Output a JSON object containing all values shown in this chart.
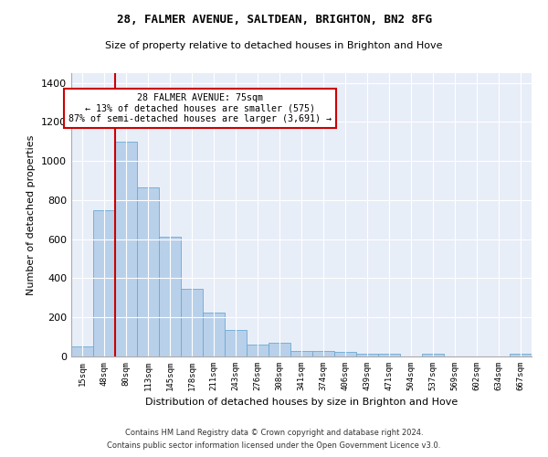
{
  "title1": "28, FALMER AVENUE, SALTDEAN, BRIGHTON, BN2 8FG",
  "title2": "Size of property relative to detached houses in Brighton and Hove",
  "xlabel": "Distribution of detached houses by size in Brighton and Hove",
  "ylabel": "Number of detached properties",
  "categories": [
    "15sqm",
    "48sqm",
    "80sqm",
    "113sqm",
    "145sqm",
    "178sqm",
    "211sqm",
    "243sqm",
    "276sqm",
    "308sqm",
    "341sqm",
    "374sqm",
    "406sqm",
    "439sqm",
    "471sqm",
    "504sqm",
    "537sqm",
    "569sqm",
    "602sqm",
    "634sqm",
    "667sqm"
  ],
  "values": [
    50,
    750,
    1100,
    865,
    615,
    345,
    225,
    135,
    60,
    70,
    30,
    30,
    22,
    15,
    15,
    0,
    12,
    0,
    0,
    0,
    12
  ],
  "bar_color": "#b8d0ea",
  "bar_edgecolor": "#6aaad4",
  "vline_color": "#cc0000",
  "annotation_text": "28 FALMER AVENUE: 75sqm\n← 13% of detached houses are smaller (575)\n87% of semi-detached houses are larger (3,691) →",
  "annotation_box_color": "#ffffff",
  "annotation_box_edgecolor": "#cc0000",
  "ylim": [
    0,
    1450
  ],
  "yticks": [
    0,
    200,
    400,
    600,
    800,
    1000,
    1200,
    1400
  ],
  "bg_color": "#e8eef8",
  "footnote1": "Contains HM Land Registry data © Crown copyright and database right 2024.",
  "footnote2": "Contains public sector information licensed under the Open Government Licence v3.0."
}
